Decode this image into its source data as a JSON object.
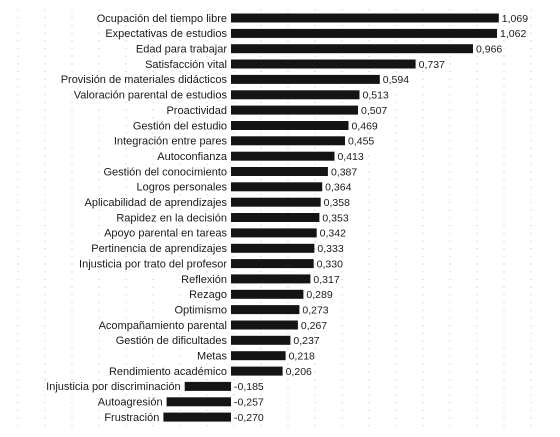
{
  "chart_data": {
    "type": "bar",
    "orientation": "horizontal",
    "title": "",
    "xlabel": "",
    "ylabel": "",
    "grid": true,
    "grid_style": "dotted",
    "bar_color": "#141414",
    "decimal_separator": ",",
    "xlim": [
      -0.27,
      1.069
    ],
    "categories": [
      "Ocupación del tiempo libre",
      "Expectativas de estudios",
      "Edad para trabajar",
      "Satisfacción vital",
      "Provisión de materiales didácticos",
      "Valoración parental de estudios",
      "Proactividad",
      "Gestión del estudio",
      "Integración entre pares",
      "Autoconfianza",
      "Gestión del conocimiento",
      "Logros personales",
      "Aplicabilidad de aprendizajes",
      "Rapidez en la decisión",
      "Apoyo parental en tareas",
      "Pertinencia de aprendizajes",
      "Injusticia por trato del profesor",
      "Reflexión",
      "Rezago",
      "Optimismo",
      "Acompañamiento parental",
      "Gestión de dificultades",
      "Metas",
      "Rendimiento académico",
      "Injusticia por discriminación",
      "Autoagresión",
      "Frustración"
    ],
    "values": [
      1.069,
      1.062,
      0.966,
      0.737,
      0.594,
      0.513,
      0.507,
      0.469,
      0.455,
      0.413,
      0.387,
      0.364,
      0.358,
      0.353,
      0.342,
      0.333,
      0.33,
      0.317,
      0.289,
      0.273,
      0.267,
      0.237,
      0.218,
      0.206,
      -0.185,
      -0.257,
      -0.27
    ],
    "value_labels": [
      "1,069",
      "1,062",
      "0,966",
      "0,737",
      "0,594",
      "0,513",
      "0,507",
      "0,469",
      "0,455",
      "0,413",
      "0,387",
      "0,364",
      "0,358",
      "0,353",
      "0,342",
      "0,333",
      "0,330",
      "0,317",
      "0,289",
      "0,273",
      "0,267",
      "0,237",
      "0,218",
      "0,206",
      "-0,185",
      "-0,257",
      "-0,270"
    ]
  }
}
